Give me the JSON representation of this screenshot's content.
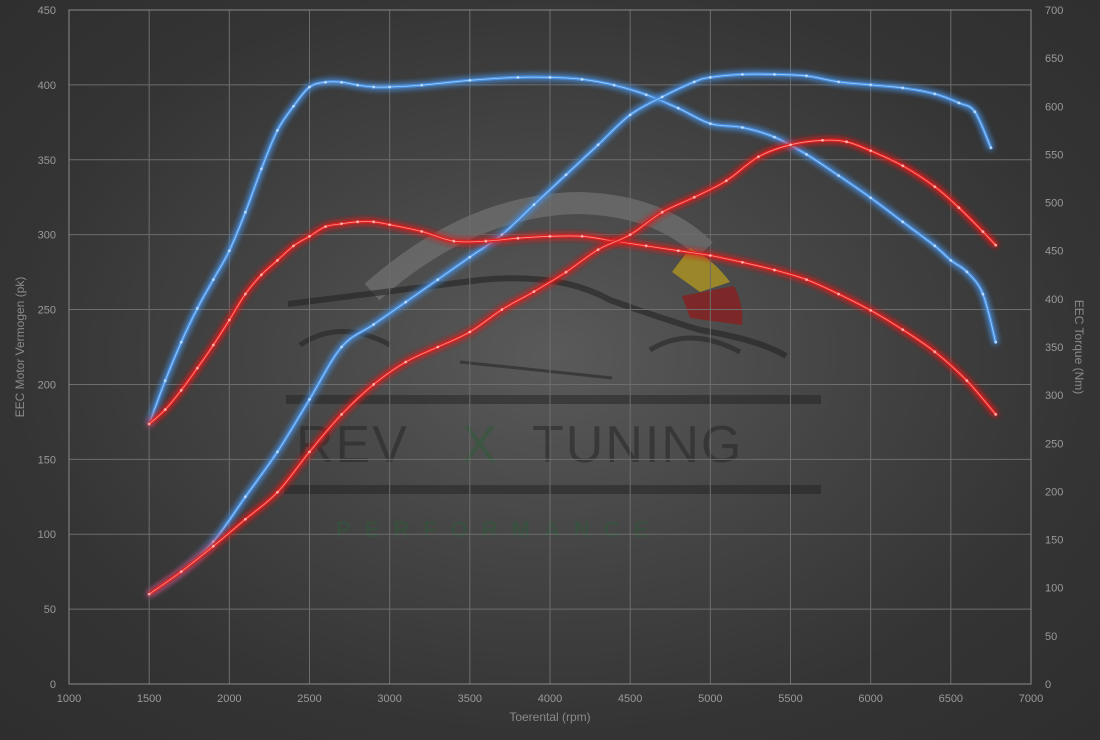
{
  "chart_data": {
    "type": "line",
    "title": "",
    "xlabel": "Toerental (rpm)",
    "ylabel_left": "EEC Motor Vermogen (pk)",
    "ylabel_right": "EEC Torque (Nm)",
    "xlim": [
      1000,
      7000
    ],
    "ylim_left": [
      0,
      450
    ],
    "ylim_right": [
      0,
      700
    ],
    "x_ticks": [
      1000,
      1500,
      2000,
      2500,
      3000,
      3500,
      4000,
      4500,
      5000,
      5500,
      6000,
      6500,
      7000
    ],
    "y_left_ticks": [
      0,
      50,
      100,
      150,
      200,
      250,
      300,
      350,
      400,
      450
    ],
    "y_right_ticks": [
      0,
      50,
      100,
      150,
      200,
      250,
      300,
      350,
      400,
      450,
      500,
      550,
      600,
      650,
      700
    ],
    "grid": true,
    "series": [
      {
        "axis": "right",
        "color": "#4a90e0",
        "x": [
          1500,
          1600,
          1700,
          1800,
          1900,
          2000,
          2100,
          2200,
          2300,
          2400,
          2500,
          2600,
          2700,
          2800,
          2900,
          3000,
          3200,
          3500,
          3800,
          4000,
          4200,
          4400,
          4600,
          4800,
          5000,
          5200,
          5400,
          5600,
          5800,
          6000,
          6200,
          6400,
          6500,
          6600,
          6700,
          6780
        ],
        "y": [
          270,
          315,
          355,
          390,
          420,
          450,
          490,
          535,
          575,
          600,
          620,
          625,
          625,
          622,
          620,
          620,
          622,
          627,
          630,
          630,
          628,
          622,
          612,
          598,
          582,
          578,
          568,
          550,
          528,
          505,
          480,
          455,
          440,
          428,
          405,
          355
        ]
      },
      {
        "axis": "left",
        "color": "#4a90e0",
        "x": [
          1500,
          1700,
          1900,
          2100,
          2300,
          2500,
          2700,
          2900,
          3100,
          3300,
          3500,
          3700,
          3900,
          4100,
          4300,
          4500,
          4700,
          4900,
          5000,
          5200,
          5400,
          5600,
          5800,
          6000,
          6200,
          6400,
          6550,
          6650,
          6750
        ],
        "y": [
          60,
          75,
          95,
          125,
          155,
          190,
          225,
          240,
          255,
          270,
          285,
          300,
          320,
          340,
          360,
          380,
          392,
          402,
          405,
          407,
          407,
          406,
          402,
          400,
          398,
          394,
          388,
          382,
          358
        ]
      },
      {
        "axis": "right",
        "color": "#e02424",
        "x": [
          1500,
          1600,
          1700,
          1800,
          1900,
          2000,
          2100,
          2200,
          2300,
          2400,
          2500,
          2600,
          2700,
          2800,
          2900,
          3000,
          3200,
          3400,
          3600,
          3800,
          4000,
          4200,
          4400,
          4600,
          4800,
          5000,
          5200,
          5400,
          5600,
          5800,
          6000,
          6200,
          6400,
          6600,
          6780
        ],
        "y": [
          270,
          285,
          305,
          328,
          352,
          378,
          405,
          425,
          440,
          455,
          465,
          475,
          478,
          480,
          480,
          477,
          470,
          460,
          460,
          463,
          465,
          465,
          460,
          455,
          450,
          445,
          438,
          430,
          420,
          405,
          388,
          368,
          345,
          315,
          280
        ]
      },
      {
        "axis": "left",
        "color": "#e02424",
        "x": [
          1500,
          1700,
          1900,
          2100,
          2300,
          2500,
          2700,
          2900,
          3100,
          3300,
          3500,
          3700,
          3900,
          4100,
          4300,
          4500,
          4700,
          4900,
          5100,
          5300,
          5500,
          5700,
          5850,
          6000,
          6200,
          6400,
          6550,
          6700,
          6780
        ],
        "y": [
          60,
          75,
          92,
          110,
          128,
          155,
          180,
          200,
          215,
          225,
          235,
          250,
          262,
          275,
          290,
          300,
          315,
          325,
          336,
          352,
          360,
          363,
          362,
          356,
          346,
          332,
          318,
          302,
          293
        ]
      }
    ]
  },
  "watermark": {
    "main_left": "REV",
    "main_x": "X",
    "main_right": "TUNING",
    "sub": "PERFORMANCE"
  }
}
